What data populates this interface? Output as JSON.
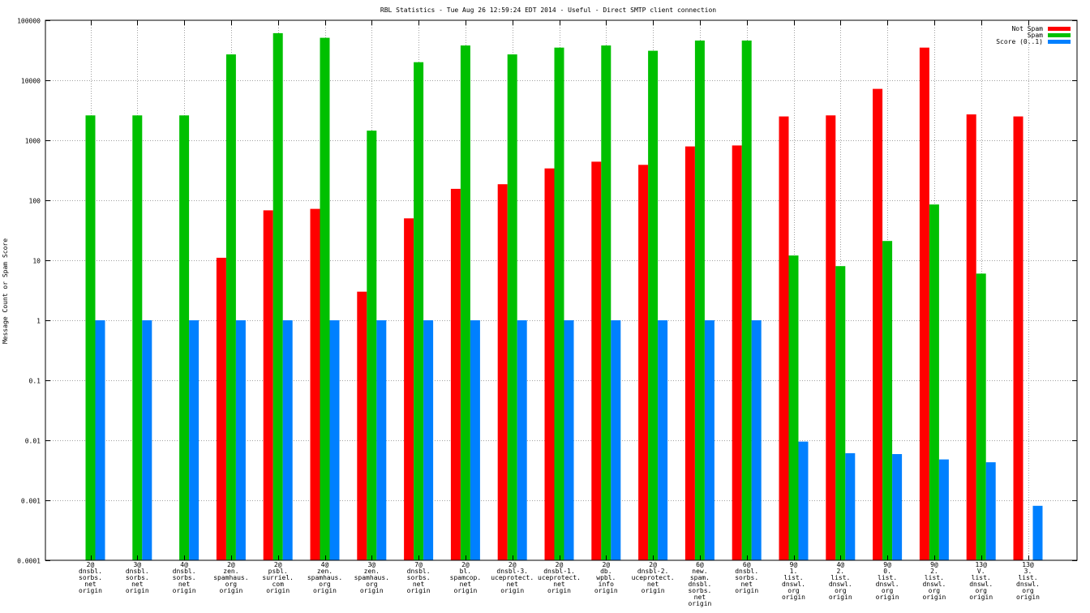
{
  "chart_data": {
    "type": "bar",
    "title": "RBL Statistics - Tue Aug 26 12:59:24 EDT 2014 - Useful - Direct SMTP client connection",
    "xlabel": "",
    "ylabel": "Message Count or Spam Score",
    "yscale": "log",
    "ylim": [
      0.0001,
      100000
    ],
    "yticks": [
      "0.0001",
      "0.001",
      "0.01",
      "0.1",
      "1",
      "10",
      "100",
      "1000",
      "10000",
      "100000"
    ],
    "grid": true,
    "legend_position": "top-right",
    "categories": [
      [
        "2@",
        "dnsbl.",
        "sorbs.",
        "net",
        "origin"
      ],
      [
        "3@",
        "dnsbl.",
        "sorbs.",
        "net",
        "origin"
      ],
      [
        "4@",
        "dnsbl.",
        "sorbs.",
        "net",
        "origin"
      ],
      [
        "2@",
        "zen.",
        "spamhaus.",
        "org",
        "origin"
      ],
      [
        "2@",
        "psbl.",
        "surriel.",
        "com",
        "origin"
      ],
      [
        "4@",
        "zen.",
        "spamhaus.",
        "org",
        "origin"
      ],
      [
        "3@",
        "zen.",
        "spamhaus.",
        "org",
        "origin"
      ],
      [
        "7@",
        "dnsbl.",
        "sorbs.",
        "net",
        "origin"
      ],
      [
        "2@",
        "bl.",
        "spamcop.",
        "net",
        "origin"
      ],
      [
        "2@",
        "dnsbl-3.",
        "uceprotect.",
        "net",
        "origin"
      ],
      [
        "2@",
        "dnsbl-1.",
        "uceprotect.",
        "net",
        "origin"
      ],
      [
        "2@",
        "db.",
        "wpbl.",
        "info",
        "origin"
      ],
      [
        "2@",
        "dnsbl-2.",
        "uceprotect.",
        "net",
        "origin"
      ],
      [
        "6@",
        "new.",
        "spam.",
        "dnsbl.",
        "sorbs.",
        "net",
        "origin"
      ],
      [
        "6@",
        "dnsbl.",
        "sorbs.",
        "net",
        "origin"
      ],
      [
        "9@",
        "1.",
        "list.",
        "dnswl.",
        "org",
        "origin"
      ],
      [
        "4@",
        "2.",
        "list.",
        "dnswl.",
        "org",
        "origin"
      ],
      [
        "9@",
        "0.",
        "list.",
        "dnswl.",
        "org",
        "origin"
      ],
      [
        "9@",
        "2.",
        "list.",
        "dnswl.",
        "org",
        "origin"
      ],
      [
        "13@",
        "V.",
        "list.",
        "dnswl.",
        "org",
        "origin"
      ],
      [
        "13@",
        "3.",
        "list.",
        "dnswl.",
        "org",
        "origin"
      ]
    ],
    "series": [
      {
        "name": "Not Spam",
        "color": "#ff0000",
        "values": [
          null,
          null,
          null,
          11,
          68,
          72,
          3,
          50,
          155,
          185,
          340,
          440,
          390,
          790,
          820,
          2500,
          2600,
          7200,
          35000,
          2700,
          2500
        ]
      },
      {
        "name": "Spam",
        "color": "#00c000",
        "values": [
          2600,
          2600,
          2600,
          27000,
          61000,
          51000,
          1450,
          20000,
          38000,
          27000,
          35000,
          38000,
          31000,
          46000,
          46000,
          12,
          8,
          21,
          85,
          6,
          null
        ]
      },
      {
        "name": "Score (0..1)",
        "color": "#0080ff",
        "values": [
          1,
          1,
          1,
          1,
          1,
          1,
          1,
          1,
          1,
          1,
          1,
          1,
          1,
          1,
          1,
          0.0095,
          0.0061,
          0.0059,
          0.0048,
          0.0043,
          0.00081
        ]
      }
    ]
  }
}
